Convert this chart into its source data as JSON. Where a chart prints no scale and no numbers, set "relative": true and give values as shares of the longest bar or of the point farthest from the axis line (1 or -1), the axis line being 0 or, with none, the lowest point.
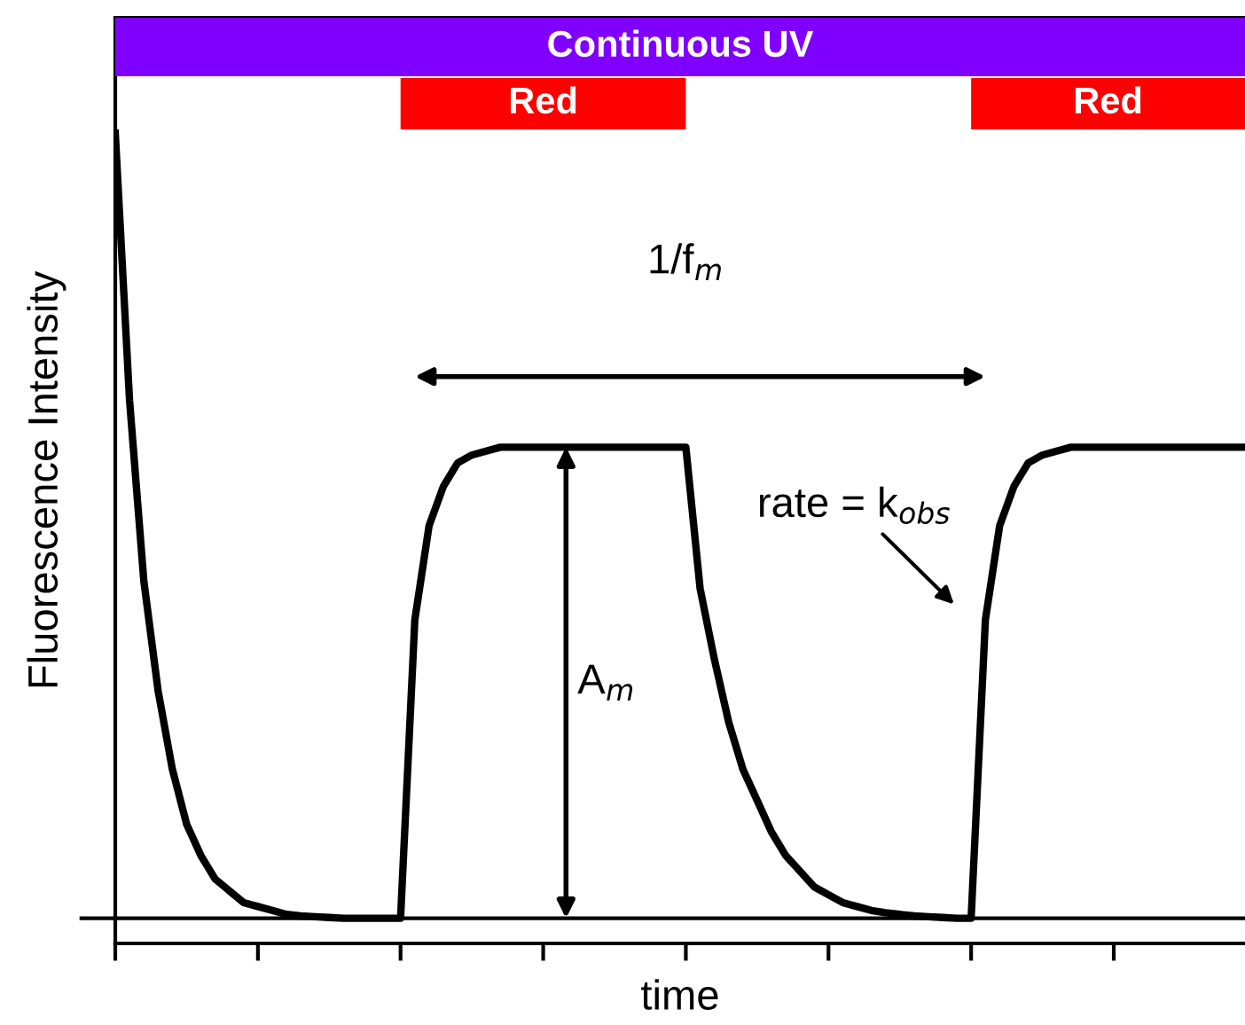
{
  "chart_data": {
    "type": "line",
    "relative": true,
    "xlabel": "time",
    "ylabel": "Fluorescence Intensity",
    "categories": [
      null,
      null,
      null,
      null,
      null,
      null,
      null,
      null,
      null,
      null,
      null,
      null,
      null,
      null,
      null,
      null,
      null,
      null,
      null,
      null,
      null,
      null,
      null,
      null,
      null,
      null,
      null,
      null,
      null,
      null,
      null,
      null,
      null,
      null,
      null,
      null,
      null,
      null,
      null,
      null,
      null,
      null,
      null,
      null,
      null,
      null,
      null,
      null,
      null,
      null,
      null,
      null,
      null,
      null,
      null,
      null,
      null,
      null,
      null,
      null,
      null,
      null,
      null,
      null,
      null,
      null,
      null,
      null,
      null,
      null,
      null,
      null,
      null,
      null,
      null,
      null,
      null,
      null,
      null,
      null
    ],
    "line_style": "solid",
    "series": [
      {
        "color": "#000000",
        "values": [
          1.0,
          0.66,
          0.43,
          0.29,
          0.19,
          0.12,
          0.08,
          0.05,
          0.035,
          0.02,
          0.015,
          0.01,
          0.005,
          0.003,
          0.002,
          0.001,
          0,
          0,
          0,
          0,
          0,
          0.38,
          0.5,
          0.55,
          0.58,
          0.59,
          0.595,
          0.6,
          0.6,
          0.6,
          0.6,
          0.6,
          0.6,
          0.6,
          0.6,
          0.6,
          0.6,
          0.6,
          0.6,
          0.6,
          0.6,
          0.42,
          0.33,
          0.25,
          0.19,
          0.15,
          0.11,
          0.08,
          0.06,
          0.04,
          0.03,
          0.02,
          0.015,
          0.01,
          0.007,
          0.005,
          0.003,
          0.002,
          0.001,
          0,
          0,
          0.38,
          0.5,
          0.55,
          0.58,
          0.59,
          0.595,
          0.6,
          0.6,
          0.6,
          0.6,
          0.6,
          0.6,
          0.6,
          0.6,
          0.6,
          0.6,
          0.6,
          0.6,
          0.6
        ]
      }
    ],
    "annotations": [
      "Continuous UV",
      "Red",
      "Red",
      "1/f$_{m}$",
      "A$_{m}$",
      "rate = k$_{obs}$"
    ]
  }
}
